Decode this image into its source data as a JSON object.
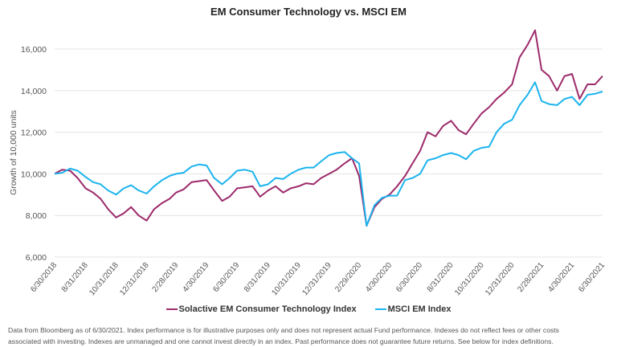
{
  "chart_data": {
    "type": "line",
    "title": "EM Consumer Technology vs. MSCI EM",
    "ylabel": "Growth of 10,000 units",
    "xlabel": "",
    "ylim": [
      6000,
      16000
    ],
    "yticks": [
      "6,000",
      "8,000",
      "10,000",
      "12,000",
      "14,000",
      "16,000"
    ],
    "ytick_values": [
      6000,
      8000,
      10000,
      12000,
      14000,
      16000
    ],
    "xticks": [
      "6/30/2018",
      "8/31/2018",
      "10/31/2018",
      "12/31/2018",
      "2/28/2019",
      "4/30/2019",
      "6/30/2019",
      "8/31/2019",
      "10/31/2019",
      "12/31/2019",
      "2/29/2020",
      "4/30/2020",
      "6/30/2020",
      "8/31/2020",
      "10/31/2020",
      "12/31/2020",
      "2/28/2021",
      "4/30/2021",
      "6/30/2021"
    ],
    "grid": "horizontal",
    "legend": "bottom",
    "x": [
      "2018-06-30",
      "2018-07-15",
      "2018-07-31",
      "2018-08-15",
      "2018-08-31",
      "2018-09-15",
      "2018-09-30",
      "2018-10-15",
      "2018-10-31",
      "2018-11-15",
      "2018-11-30",
      "2018-12-15",
      "2018-12-31",
      "2019-01-15",
      "2019-01-31",
      "2019-02-15",
      "2019-02-28",
      "2019-03-15",
      "2019-03-31",
      "2019-04-15",
      "2019-04-30",
      "2019-05-15",
      "2019-05-31",
      "2019-06-15",
      "2019-06-30",
      "2019-07-15",
      "2019-07-31",
      "2019-08-15",
      "2019-08-31",
      "2019-09-15",
      "2019-09-30",
      "2019-10-15",
      "2019-10-31",
      "2019-11-15",
      "2019-11-30",
      "2019-12-15",
      "2019-12-31",
      "2020-01-15",
      "2020-01-31",
      "2020-02-15",
      "2020-02-29",
      "2020-03-15",
      "2020-03-31",
      "2020-04-15",
      "2020-04-30",
      "2020-05-15",
      "2020-05-31",
      "2020-06-15",
      "2020-06-30",
      "2020-07-15",
      "2020-07-31",
      "2020-08-15",
      "2020-08-31",
      "2020-09-15",
      "2020-09-30",
      "2020-10-15",
      "2020-10-31",
      "2020-11-15",
      "2020-11-30",
      "2020-12-15",
      "2020-12-31",
      "2021-01-15",
      "2021-01-31",
      "2021-02-15",
      "2021-02-28",
      "2021-03-15",
      "2021-03-31",
      "2021-04-15",
      "2021-04-30",
      "2021-05-15",
      "2021-05-31",
      "2021-06-15",
      "2021-06-30"
    ],
    "series": [
      {
        "name": "Solactive EM Consumer Technology Index",
        "color": "#9c2a6a",
        "values": [
          10000,
          10200,
          10150,
          9800,
          9300,
          9100,
          8800,
          8300,
          7900,
          8100,
          8400,
          8000,
          7750,
          8300,
          8600,
          8800,
          9100,
          9250,
          9600,
          9650,
          9700,
          9200,
          8700,
          8900,
          9300,
          9350,
          9400,
          8900,
          9200,
          9400,
          9100,
          9300,
          9400,
          9550,
          9500,
          9800,
          10000,
          10200,
          10500,
          10750,
          9900,
          7500,
          8400,
          8800,
          9000,
          9400,
          9900,
          10500,
          11100,
          12000,
          11800,
          12300,
          12550,
          12100,
          11900,
          12400,
          12900,
          13200,
          13600,
          13900,
          14300,
          15600,
          16200,
          16900,
          15000,
          14700,
          14000,
          14700,
          14800,
          13600,
          14300,
          14300,
          14700
        ]
      },
      {
        "name": "MSCI EM Index",
        "color": "#1cb4ee",
        "values": [
          10000,
          10050,
          10250,
          10150,
          9850,
          9600,
          9500,
          9200,
          9000,
          9300,
          9450,
          9200,
          9050,
          9400,
          9700,
          9900,
          10000,
          10050,
          10350,
          10450,
          10400,
          9800,
          9500,
          9800,
          10150,
          10200,
          10100,
          9400,
          9500,
          9800,
          9750,
          10000,
          10200,
          10300,
          10300,
          10600,
          10900,
          11000,
          11050,
          10750,
          10500,
          7500,
          8500,
          8850,
          8950,
          8950,
          9700,
          9800,
          10000,
          10650,
          10750,
          10900,
          11000,
          10900,
          10700,
          11100,
          11250,
          11300,
          12000,
          12400,
          12600,
          13300,
          13800,
          14400,
          13500,
          13350,
          13300,
          13600,
          13700,
          13300,
          13800,
          13850,
          13950
        ]
      }
    ]
  },
  "footnote": {
    "line1": "Data from Bloomberg as of 6/30/2021. Index performance is for illustrative purposes only and does not represent actual Fund performance. Indexes do not reflect fees or other costs",
    "line2": "associated with investing. Indexes are unmanaged and one cannot invest directly in an index. Past performance does not guarantee future returns. See below for index definitions."
  }
}
